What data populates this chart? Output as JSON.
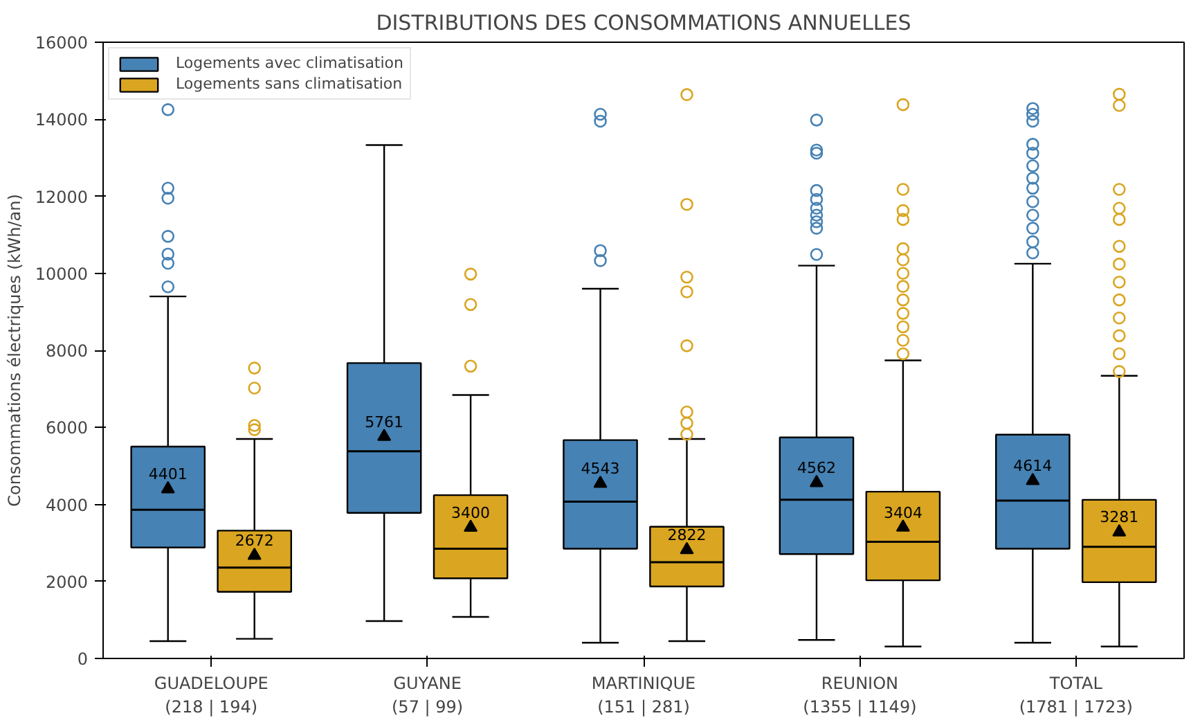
{
  "chart_data": {
    "type": "box",
    "title": "DISTRIBUTIONS DES CONSOMMATIONS ANNUELLES",
    "ylabel": "Consommations électriques (kWh/an)",
    "categories": [
      "GUADELOUPE\n(218 | 194)",
      "GUYANE\n(57 | 99)",
      "MARTINIQUE\n(151 | 281)",
      "REUNION\n(1355 | 1149)",
      "TOTAL\n(1781 | 1723)"
    ],
    "ylim": [
      0,
      16000
    ],
    "yticks": [
      0,
      2000,
      4000,
      6000,
      8000,
      10000,
      12000,
      14000,
      16000
    ],
    "grid": false,
    "legend": "top left",
    "marker": "circle",
    "series": [
      {
        "name": "Logements avec climatisation",
        "color": "#4682b4",
        "value_labels": [
          "4401",
          "5761",
          "4543",
          "4562",
          "4614"
        ],
        "boxes": [
          {
            "low": 450,
            "q1": 2880,
            "median": 3860,
            "q3": 5500,
            "high": 9400,
            "mean": 4401,
            "outliers": [
              9650,
              10260,
              10500,
              10960,
              11950,
              12210,
              14250
            ]
          },
          {
            "low": 970,
            "q1": 3780,
            "median": 5380,
            "q3": 7670,
            "high": 13330,
            "mean": 5761
          },
          {
            "low": 410,
            "q1": 2850,
            "median": 4070,
            "q3": 5670,
            "high": 9600,
            "mean": 4543,
            "outliers": [
              10330,
              10590,
              13950,
              14130
            ]
          },
          {
            "low": 480,
            "q1": 2710,
            "median": 4120,
            "q3": 5740,
            "high": 10200,
            "mean": 4562,
            "outliers": [
              10490,
              11170,
              11340,
              11510,
              11690,
              11920,
              12150,
              13120,
              13200,
              13980
            ]
          },
          {
            "low": 410,
            "q1": 2850,
            "median": 4100,
            "q3": 5810,
            "high": 10250,
            "mean": 4614,
            "outliers": [
              10530,
              10820,
              11170,
              11510,
              11860,
              12210,
              12470,
              12790,
              13120,
              13350,
              13950,
              14130,
              14280
            ]
          }
        ]
      },
      {
        "name": "Logements sans climatisation",
        "color": "#daa520",
        "value_labels": [
          "2672",
          "3400",
          "2822",
          "3404",
          "3281"
        ],
        "boxes": [
          {
            "low": 510,
            "q1": 1730,
            "median": 2360,
            "q3": 3320,
            "high": 5700,
            "mean": 2672,
            "outliers": [
              5940,
              6050,
              7020,
              7540
            ]
          },
          {
            "low": 1080,
            "q1": 2080,
            "median": 2850,
            "q3": 4240,
            "high": 6840,
            "mean": 3400,
            "outliers": [
              7590,
              9190,
              9980
            ]
          },
          {
            "low": 450,
            "q1": 1870,
            "median": 2500,
            "q3": 3420,
            "high": 5700,
            "mean": 2822,
            "outliers": [
              5820,
              6110,
              6400,
              8120,
              9520,
              9900,
              11790,
              14640
            ]
          },
          {
            "low": 310,
            "q1": 2030,
            "median": 3030,
            "q3": 4330,
            "high": 7740,
            "mean": 3404,
            "outliers": [
              7910,
              8260,
              8610,
              8960,
              9310,
              9660,
              10000,
              10350,
              10640,
              11400,
              11630,
              12180,
              14380
            ]
          },
          {
            "low": 310,
            "q1": 1980,
            "median": 2900,
            "q3": 4120,
            "high": 7340,
            "mean": 3281,
            "outliers": [
              7450,
              7910,
              8380,
              8840,
              9310,
              9770,
              10240,
              10700,
              11400,
              11690,
              12180,
              14360,
              14650
            ]
          }
        ]
      }
    ]
  }
}
